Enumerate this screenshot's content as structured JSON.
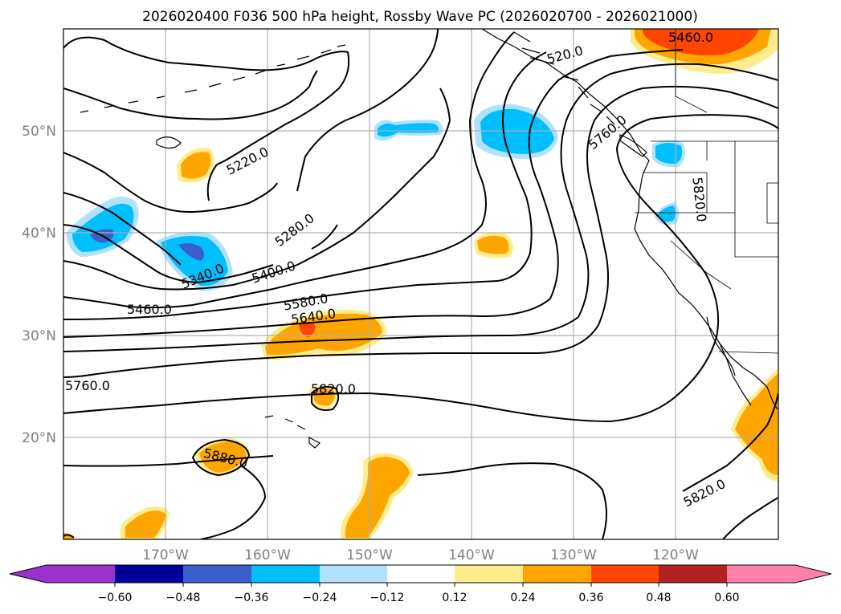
{
  "title": "2026020400 F036 500 hPa height, Rossby Wave PC (2026020700 - 2026021000)",
  "colors": {
    "very_neg": "#9933cc",
    "neg_060": "#000099",
    "neg_048": "#3a5fcd",
    "neg_036": "#00bfff",
    "neg_024": "#b0e2ff",
    "neutral": "#ffffff",
    "pos_012": "#ffec8b",
    "pos_024": "#ffa500",
    "pos_036": "#ff4500",
    "pos_048": "#b22222",
    "pos_060": "#ff82ab"
  },
  "chart_data": {
    "type": "contour-map",
    "title": "2026020400 F036 500 hPa height, Rossby Wave PC (2026020700 - 2026021000)",
    "lon_range": [
      -180,
      -110
    ],
    "lat_range": [
      10,
      60
    ],
    "lat_ticks": [
      "20°N",
      "30°N",
      "40°N",
      "50°N"
    ],
    "lon_ticks": [
      "170°W",
      "160°W",
      "150°W",
      "140°W",
      "130°W",
      "120°W"
    ],
    "contour_labels": [
      "5220.0",
      "5280.0",
      "5340.0",
      "5400.0",
      "5460.0",
      "5580.0",
      "5640.0",
      "5760.0",
      "5820.0",
      "5880.0",
      "5820.0",
      "5460.0",
      "520.0",
      "5760.0",
      "5820.0"
    ],
    "colorbar_ticks": [
      "−0.60",
      "−0.48",
      "−0.36",
      "−0.24",
      "−0.12",
      "0.12",
      "0.24",
      "0.36",
      "0.48",
      "0.60"
    ],
    "colorbar_levels": [
      -0.6,
      -0.48,
      -0.36,
      -0.24,
      -0.12,
      0.12,
      0.24,
      0.36,
      0.48,
      0.6
    ]
  }
}
